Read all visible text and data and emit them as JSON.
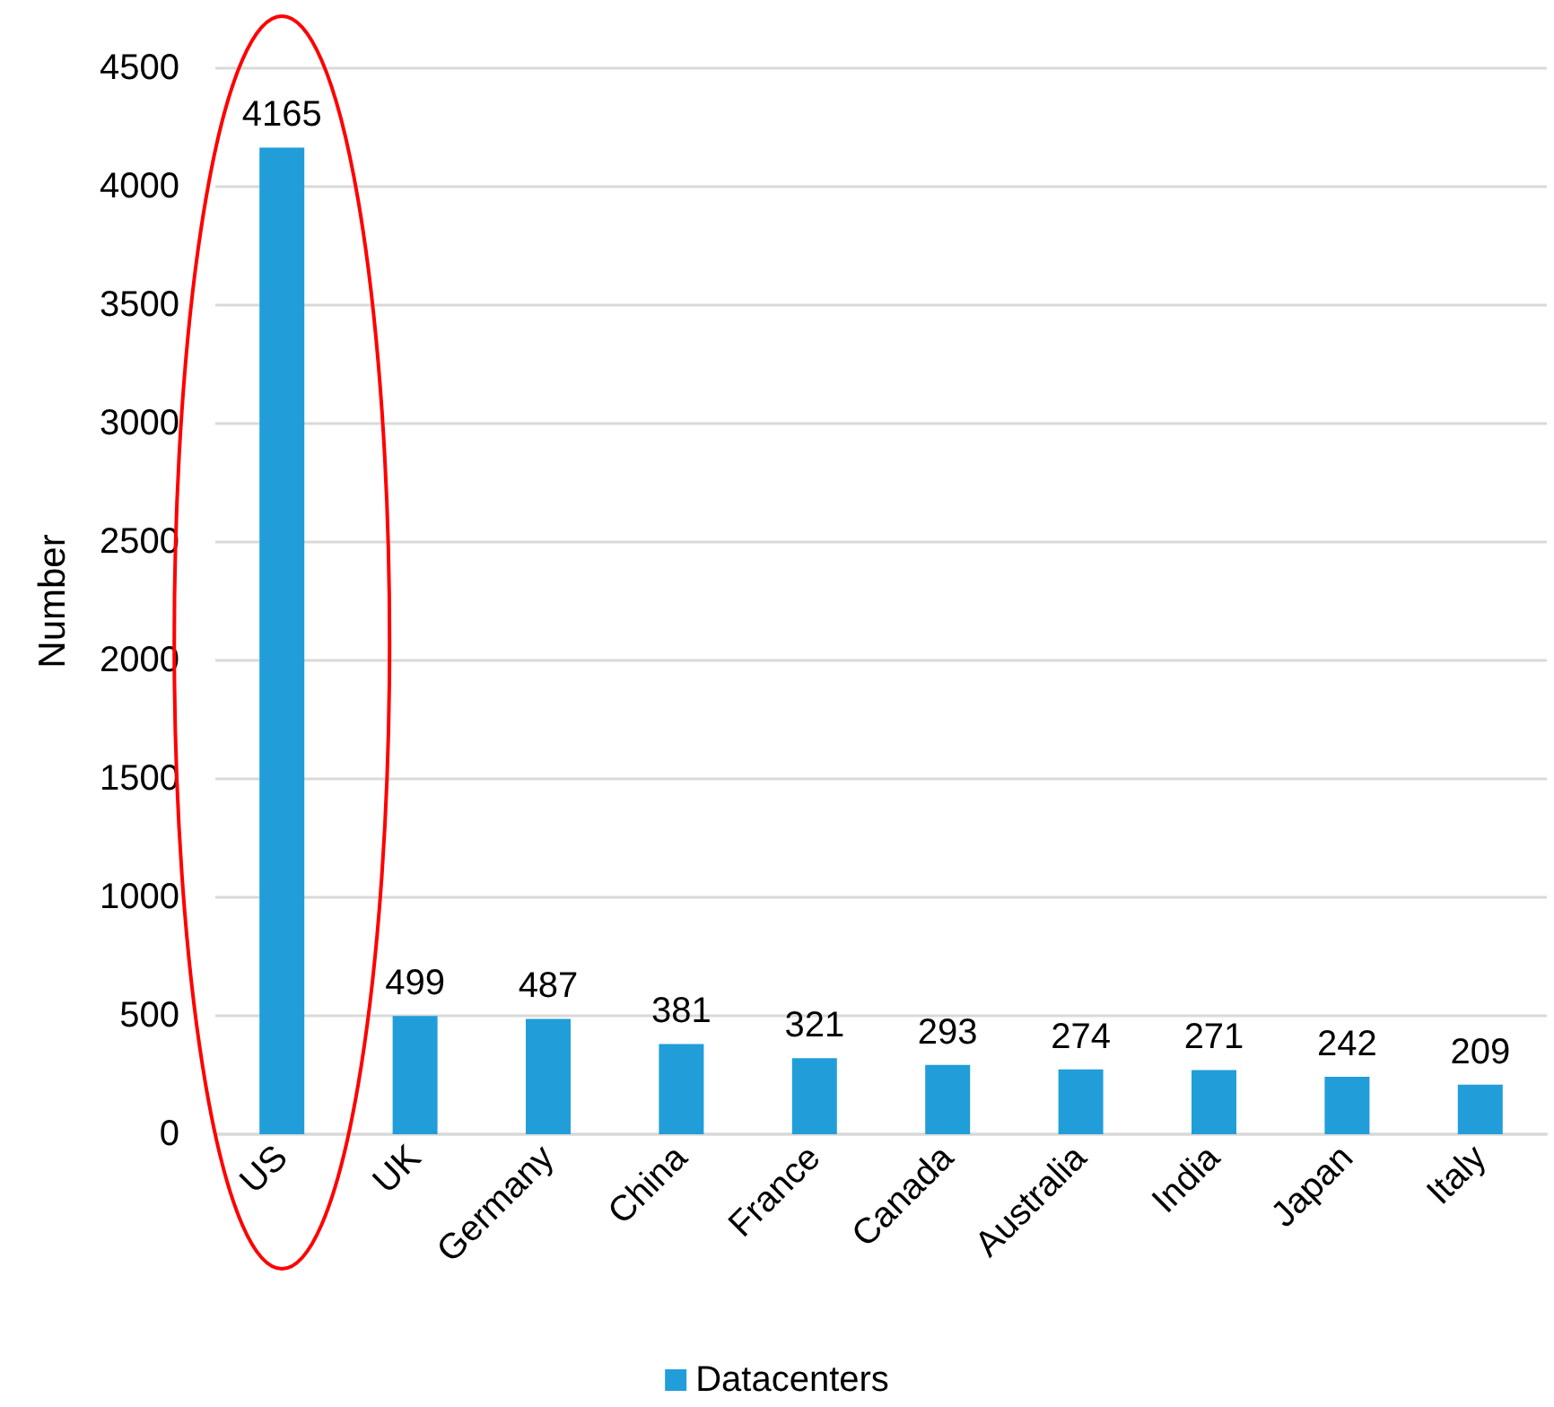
{
  "chart_data": {
    "type": "bar",
    "ylabel": "Number",
    "categories": [
      "US",
      "UK",
      "Germany",
      "China",
      "France",
      "Canada",
      "Australia",
      "India",
      "Japan",
      "Italy"
    ],
    "series": [
      {
        "name": "Datacenters",
        "color": "#219ed9",
        "values": [
          4165,
          499,
          487,
          381,
          321,
          293,
          274,
          271,
          242,
          209
        ]
      }
    ],
    "ylim": [
      0,
      4500
    ],
    "yticks": [
      0,
      500,
      1000,
      1500,
      2000,
      2500,
      3000,
      3500,
      4000,
      4500
    ],
    "grid": "y",
    "legend": "bottom",
    "data_labels": true
  }
}
